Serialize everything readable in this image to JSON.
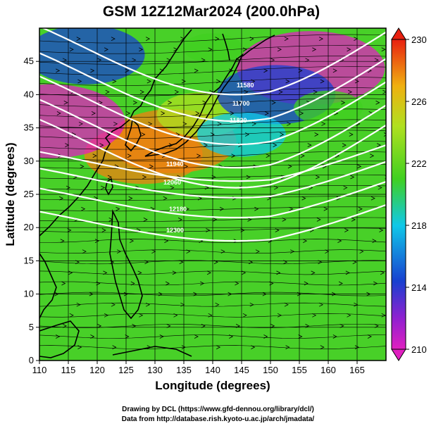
{
  "title": "GSM 12Z12Mar2024 (200.0hPa)",
  "xlabel": "Longitude (degrees)",
  "ylabel": "Latitude  (degrees)",
  "credits": {
    "line1": "Drawing by DCL (https://www.gfd-dennou.org/library/dcl/)",
    "line2": "Data from http://database.rish.kyoto-u.ac.jp/arch/jmadata/"
  },
  "colors": {
    "low": "#e020c0",
    "mid_low": "#1840d0",
    "cyan": "#10c8e8",
    "green": "#40d020",
    "yellow_green": "#b0e020",
    "orange": "#f08010",
    "high": "#e82010",
    "contour": "#ffffff",
    "streamline": "#000000"
  },
  "colorbar": {
    "min": 210,
    "max": 230,
    "tick_values": [
      230,
      226,
      222,
      218,
      214,
      210
    ],
    "tick_labels": [
      "230",
      "226",
      "222",
      "218",
      "214",
      "210"
    ]
  },
  "contour_labels": [
    "11580",
    "11700",
    "11820",
    "11940",
    "12060",
    "12180",
    "12300"
  ],
  "chart_data": {
    "type": "heatmap",
    "title": "GSM 12Z12Mar2024 (200.0hPa)",
    "xlabel": "Longitude (degrees)",
    "ylabel": "Latitude  (degrees)",
    "xlim": [
      110,
      170
    ],
    "ylim": [
      0,
      50
    ],
    "x_ticks": [
      110,
      115,
      120,
      125,
      130,
      135,
      140,
      145,
      150,
      155,
      160,
      165
    ],
    "y_ticks": [
      0,
      5,
      10,
      15,
      20,
      25,
      30,
      35,
      40,
      45
    ],
    "x_tick_labels": [
      "110",
      "115",
      "120",
      "125",
      "130",
      "135",
      "140",
      "145",
      "150",
      "155",
      "160",
      "165"
    ],
    "y_tick_labels": [
      "0",
      "5",
      "10",
      "15",
      "20",
      "25",
      "30",
      "35",
      "40",
      "45"
    ],
    "grid": true,
    "color_scale": {
      "min": 210,
      "max": 230
    },
    "features": [
      {
        "lon": 133,
        "lat": 33,
        "value": 229
      },
      {
        "lon": 128,
        "lat": 31,
        "value": 228
      },
      {
        "lon": 138,
        "lat": 37,
        "value": 225
      },
      {
        "lon": 157,
        "lat": 44,
        "value": 213
      },
      {
        "lon": 151,
        "lat": 40,
        "value": 216
      },
      {
        "lon": 112,
        "lat": 36,
        "value": 213
      },
      {
        "lon": 145,
        "lat": 34,
        "value": 219
      },
      {
        "lon": 118,
        "lat": 46,
        "value": 216
      },
      {
        "lon": 160,
        "lat": 38,
        "value": 223
      },
      {
        "lon": 140,
        "lat": 47,
        "value": 222
      }
    ]
  }
}
